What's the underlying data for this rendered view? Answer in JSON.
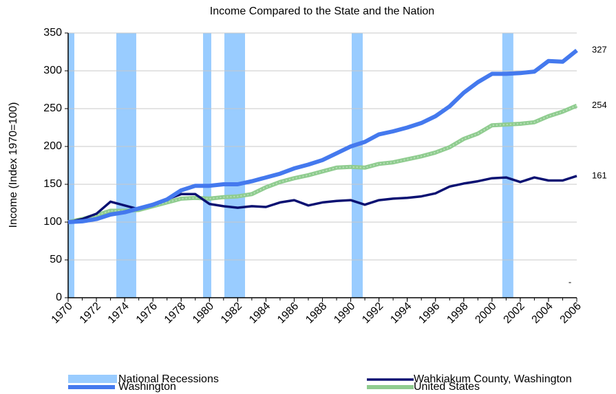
{
  "chart_data": {
    "type": "line",
    "title": "Income Compared to the State and the Nation",
    "y_label": "Income (Index 1970=100)",
    "xlim": [
      1970,
      2006
    ],
    "xticks": [
      1970,
      1972,
      1974,
      1976,
      1978,
      1980,
      1982,
      1984,
      1986,
      1988,
      1990,
      1992,
      1994,
      1996,
      1998,
      2000,
      2002,
      2004,
      2006
    ],
    "ylim": [
      0,
      350
    ],
    "yticks": [
      0,
      50,
      100,
      150,
      200,
      250,
      300,
      350
    ],
    "grid": true,
    "legend": "bottom",
    "recessions": {
      "name": "National Recessions",
      "color": "#99ccff",
      "ranges": [
        [
          1970,
          1970.44
        ],
        [
          1973.41,
          1974.82
        ],
        [
          1979.55,
          1980.13
        ],
        [
          1981.06,
          1982.52
        ],
        [
          1990.07,
          1990.85
        ],
        [
          2000.73,
          2001.51
        ]
      ]
    },
    "x": [
      1970,
      1971,
      1972,
      1973,
      1974,
      1975,
      1976,
      1977,
      1978,
      1979,
      1980,
      1981,
      1982,
      1983,
      1984,
      1985,
      1986,
      1987,
      1988,
      1989,
      1990,
      1991,
      1992,
      1993,
      1994,
      1995,
      1996,
      1997,
      1998,
      1999,
      2000,
      2001,
      2002,
      2003,
      2004,
      2005,
      2006
    ],
    "series": [
      {
        "name": "Wahkiakum County, Washington",
        "color": "#0a1172",
        "values": [
          100,
          104,
          111,
          127,
          122,
          117,
          122,
          130,
          137,
          137,
          124,
          121,
          119,
          121,
          120,
          126,
          129,
          122,
          126,
          128,
          129,
          123,
          129,
          131,
          132,
          134,
          138,
          147,
          151,
          154,
          158,
          159,
          153,
          159,
          155,
          155,
          161
        ]
      },
      {
        "name": "Washington",
        "color": "#4479ee",
        "values": [
          100,
          101,
          104,
          110,
          113,
          118,
          123,
          130,
          142,
          148,
          148,
          150,
          150,
          154,
          159,
          164,
          171,
          176,
          182,
          191,
          200,
          206,
          216,
          220,
          225,
          231,
          240,
          253,
          271,
          285,
          296,
          296,
          297,
          299,
          313,
          312,
          327
        ]
      },
      {
        "name": "United States",
        "color": "#8fcc8f",
        "values": [
          100,
          104,
          109,
          115,
          115,
          116,
          121,
          126,
          131,
          132,
          131,
          133,
          134,
          137,
          146,
          153,
          158,
          162,
          167,
          172,
          173,
          172,
          177,
          179,
          183,
          187,
          192,
          199,
          210,
          217,
          228,
          229,
          230,
          232,
          240,
          246,
          254
        ]
      }
    ],
    "annotation": "-"
  }
}
